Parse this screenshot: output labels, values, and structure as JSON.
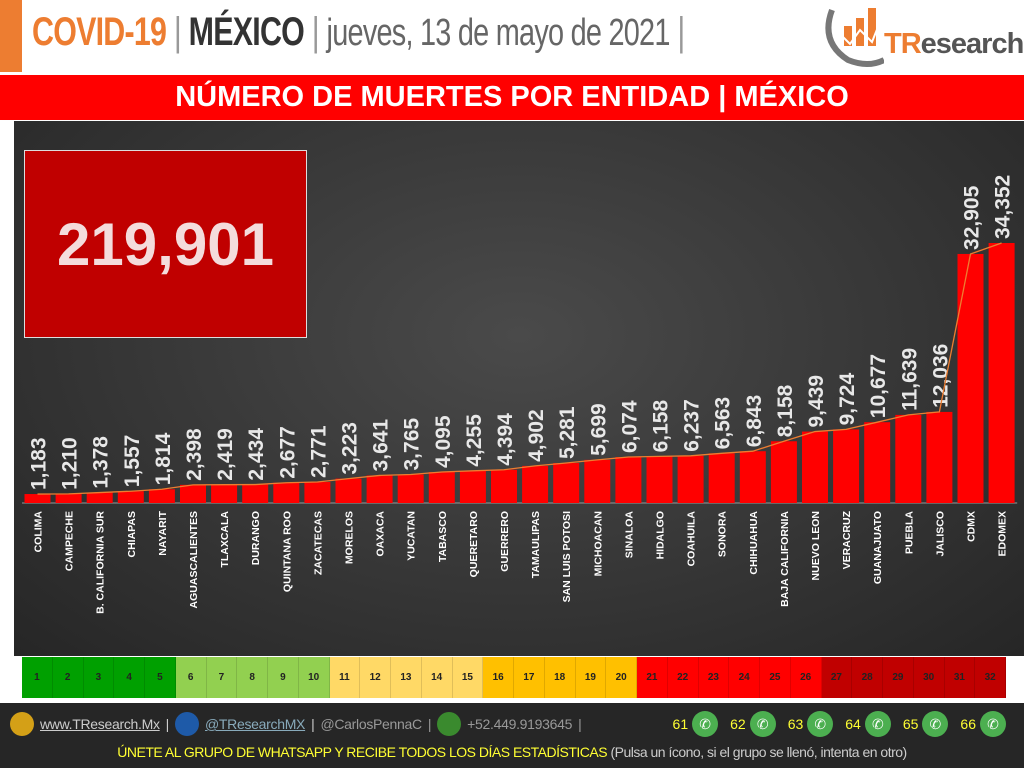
{
  "header": {
    "title_covid": "COVID-19",
    "sep": "|",
    "title_country": "MÉXICO",
    "date": "jueves, 13 de mayo de 2021",
    "logo_text_t": "TR",
    "logo_text_rest": "esearch"
  },
  "banner": "NÚMERO DE MUERTES POR ENTIDAD | MÉXICO",
  "total": "219,901",
  "chart_data": {
    "type": "bar",
    "title": "NÚMERO DE MUERTES POR ENTIDAD | MÉXICO",
    "categories": [
      "COLIMA",
      "CAMPECHE",
      "B. CALIFORNIA SUR",
      "CHIAPAS",
      "NAYARIT",
      "AGUASCALIENTES",
      "TLAXCALA",
      "DURANGO",
      "QUINTANA ROO",
      "ZACATECAS",
      "MORELOS",
      "OAXACA",
      "YUCATAN",
      "TABASCO",
      "QUERETARO",
      "GUERRERO",
      "TAMAULIPAS",
      "SAN LUIS POTOSI",
      "MICHOACAN",
      "SINALOA",
      "HIDALGO",
      "COAHUILA",
      "SONORA",
      "CHIHUAHUA",
      "BAJA CALIFORNIA",
      "NUEVO LEON",
      "VERACRUZ",
      "GUANAJUATO",
      "PUEBLA",
      "JALISCO",
      "CDMX",
      "EDOMEX"
    ],
    "values": [
      1183,
      1210,
      1378,
      1557,
      1814,
      2398,
      2419,
      2434,
      2677,
      2771,
      3223,
      3641,
      3765,
      4095,
      4255,
      4394,
      4902,
      5281,
      5699,
      6074,
      6158,
      6237,
      6563,
      6843,
      8158,
      9439,
      9724,
      10677,
      11639,
      12036,
      32905,
      34352
    ],
    "labels": [
      "1,183",
      "1,210",
      "1,378",
      "1,557",
      "1,814",
      "2,398",
      "2,419",
      "2,434",
      "2,677",
      "2,771",
      "3,223",
      "3,641",
      "3,765",
      "4,095",
      "4,255",
      "4,394",
      "4,902",
      "5,281",
      "5,699",
      "6,074",
      "6,158",
      "6,237",
      "6,563",
      "6,843",
      "8,158",
      "9,439",
      "9,724",
      "10,677",
      "11,639",
      "12,036",
      "32,905",
      "34,352"
    ],
    "bar_color": "#ff0000",
    "trend_color": "#ed7d31",
    "grid": false
  },
  "legend": {
    "items": [
      "1",
      "2",
      "3",
      "4",
      "5",
      "6",
      "7",
      "8",
      "9",
      "10",
      "11",
      "12",
      "13",
      "14",
      "15",
      "16",
      "17",
      "18",
      "19",
      "20",
      "21",
      "22",
      "23",
      "24",
      "25",
      "26",
      "27",
      "28",
      "29",
      "30",
      "31",
      "32"
    ],
    "colors": [
      "#00a000",
      "#00a000",
      "#00a000",
      "#00a000",
      "#00a000",
      "#92d050",
      "#92d050",
      "#92d050",
      "#92d050",
      "#92d050",
      "#ffd966",
      "#ffd966",
      "#ffd966",
      "#ffd966",
      "#ffd966",
      "#ffc000",
      "#ffc000",
      "#ffc000",
      "#ffc000",
      "#ffc000",
      "#ff0000",
      "#ff0000",
      "#ff0000",
      "#ff0000",
      "#ff0000",
      "#ff0000",
      "#c00000",
      "#c00000",
      "#c00000",
      "#c00000",
      "#c00000",
      "#c00000"
    ]
  },
  "footer": {
    "web": "www.TResearch.Mx",
    "twitter": "@TResearchMX",
    "user": "@CarlosPennaC",
    "phone": "+52.449.9193645",
    "whatsapp_groups": [
      "61",
      "62",
      "63",
      "64",
      "65",
      "66"
    ],
    "join": "ÚNETE AL GRUPO DE WHATSAPP Y RECIBE TODOS LOS DÍAS ESTADÍSTICAS",
    "join_note": "(Pulsa un ícono, si el grupo se llenó, intenta en otro)"
  }
}
